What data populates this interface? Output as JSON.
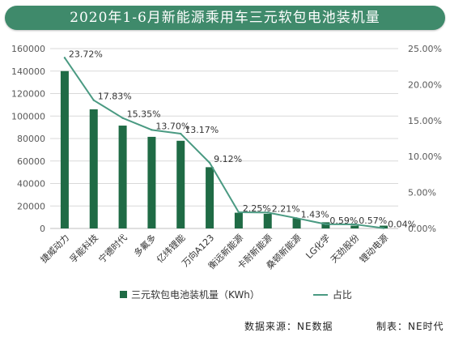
{
  "title": "2020年1-6月新能源乘用车三元软包电池装机量",
  "source": {
    "left": "数据来源：NE数据",
    "right": "制表：NE时代"
  },
  "colors": {
    "title_bg": "#3f8a6b",
    "bar": "#1f6b45",
    "line": "#4a9a82",
    "grid": "#d9d9d9",
    "axis_text": "#595959"
  },
  "chart_data": {
    "type": "bar",
    "categories": [
      "捷威动力",
      "孚能科技",
      "宁德时代",
      "多氟多",
      "亿纬锂能",
      "万向A123",
      "衡远新能源",
      "卡耐新能源",
      "桑顿新能源",
      "LG化学",
      "天劲股份",
      "锂动电源"
    ],
    "series": [
      {
        "name": "三元软包电池装机量（KWh）",
        "type": "bar",
        "axis": "left",
        "values": [
          140000,
          106000,
          91500,
          81500,
          78000,
          54500,
          14000,
          13000,
          9000,
          5500,
          2500,
          2500
        ]
      },
      {
        "name": "占比",
        "type": "line",
        "axis": "right",
        "values": [
          23.72,
          17.83,
          15.35,
          13.7,
          13.17,
          9.12,
          2.25,
          2.21,
          1.43,
          0.59,
          0.57,
          0.04
        ],
        "labels": [
          "23.72%",
          "17.83%",
          "15.35%",
          "13.70%",
          "13.17%",
          "9.12%",
          "2.25%",
          "2.21%",
          "1.43%",
          "0.59%",
          "0.57%",
          "0.04%"
        ]
      }
    ],
    "y_left": {
      "min": 0,
      "max": 160000,
      "ticks": [
        "0",
        "20000",
        "40000",
        "60000",
        "80000",
        "100000",
        "120000",
        "140000",
        "160000"
      ]
    },
    "y_right": {
      "min": 0,
      "max": 25,
      "ticks": [
        "0.00%",
        "5.00%",
        "10.00%",
        "15.00%",
        "20.00%",
        "25.00%"
      ]
    },
    "grid": true,
    "legend_position": "bottom"
  }
}
